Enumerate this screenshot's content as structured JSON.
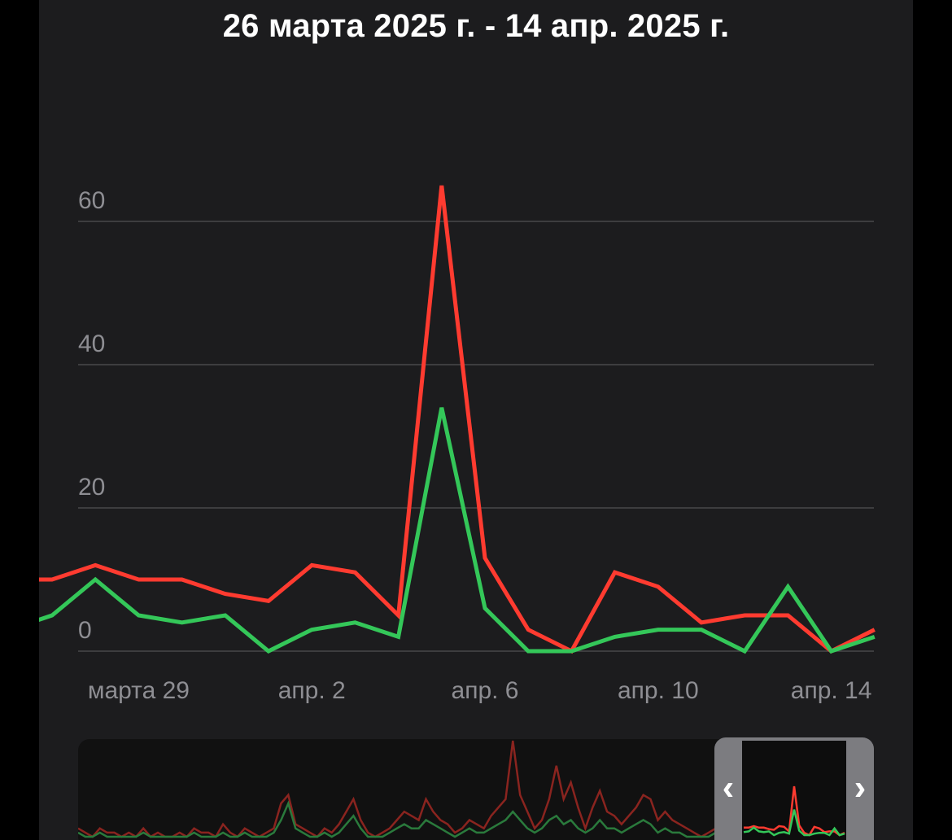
{
  "header": {
    "date_range": "26 марта 2025 г. - 14 апр. 2025 г."
  },
  "colors": {
    "background": "#1c1c1e",
    "grid": "#48484a",
    "tick_text": "#8e8e93",
    "red_series": "#ff3b30",
    "green_series": "#34c759",
    "navigator_bg": "#111111",
    "navigator_handle": "#7c7c80"
  },
  "chart_data": {
    "type": "line",
    "x": [
      "2025-03-26",
      "2025-03-27",
      "2025-03-28",
      "2025-03-29",
      "2025-03-30",
      "2025-03-31",
      "2025-04-01",
      "2025-04-02",
      "2025-04-03",
      "2025-04-04",
      "2025-04-05",
      "2025-04-06",
      "2025-04-07",
      "2025-04-08",
      "2025-04-09",
      "2025-04-10",
      "2025-04-11",
      "2025-04-12",
      "2025-04-13",
      "2025-04-14",
      "2025-04-15"
    ],
    "x_tick_labels": [
      {
        "date": "2025-03-29",
        "label": "марта 29"
      },
      {
        "date": "2025-04-02",
        "label": "апр. 2"
      },
      {
        "date": "2025-04-06",
        "label": "апр. 6"
      },
      {
        "date": "2025-04-10",
        "label": "апр. 10"
      },
      {
        "date": "2025-04-14",
        "label": "апр. 14"
      }
    ],
    "y_ticks": [
      0,
      20,
      40,
      60
    ],
    "ylim": [
      0,
      60
    ],
    "grid": true,
    "series": [
      {
        "color": "#ff3b30",
        "values": [
          10,
          10,
          12,
          10,
          10,
          8,
          7,
          12,
          11,
          5,
          65,
          13,
          3,
          0,
          11,
          9,
          4,
          5,
          5,
          0,
          3
        ]
      },
      {
        "color": "#34c759",
        "values": [
          4,
          5,
          10,
          5,
          4,
          5,
          0,
          3,
          4,
          2,
          34,
          6,
          0,
          0,
          2,
          3,
          3,
          0,
          9,
          0,
          2
        ]
      }
    ],
    "navigator": {
      "red_values": [
        2,
        1,
        0,
        2,
        1,
        1,
        0,
        1,
        0,
        2,
        0,
        1,
        0,
        0,
        1,
        0,
        2,
        1,
        1,
        0,
        3,
        1,
        0,
        2,
        1,
        0,
        1,
        2,
        8,
        10,
        3,
        2,
        1,
        0,
        2,
        1,
        3,
        6,
        9,
        4,
        1,
        0,
        1,
        2,
        4,
        6,
        5,
        4,
        9,
        6,
        4,
        3,
        1,
        2,
        4,
        3,
        2,
        5,
        7,
        9,
        23,
        10,
        6,
        2,
        4,
        9,
        17,
        9,
        13,
        7,
        2,
        7,
        11,
        6,
        5,
        3,
        5,
        7,
        10,
        9,
        4,
        6,
        4,
        3,
        2,
        1,
        0,
        1,
        2,
        3,
        2,
        3,
        1,
        2,
        1,
        2,
        4,
        3,
        3,
        3,
        2,
        2,
        1,
        0,
        0,
        1,
        0
      ],
      "green_values": [
        1,
        0,
        0,
        1,
        0,
        0,
        0,
        0,
        0,
        1,
        0,
        0,
        0,
        0,
        0,
        0,
        1,
        0,
        0,
        0,
        1,
        0,
        0,
        1,
        0,
        0,
        0,
        1,
        4,
        8,
        2,
        1,
        0,
        0,
        1,
        0,
        1,
        3,
        5,
        2,
        0,
        0,
        0,
        1,
        2,
        3,
        2,
        2,
        4,
        3,
        2,
        1,
        0,
        1,
        2,
        1,
        1,
        2,
        3,
        4,
        6,
        4,
        2,
        1,
        2,
        4,
        5,
        3,
        4,
        2,
        1,
        2,
        4,
        2,
        2,
        1,
        2,
        3,
        4,
        3,
        1,
        2,
        1,
        1,
        0,
        0,
        0,
        0,
        1,
        1,
        1,
        1,
        0,
        1,
        0,
        1,
        2,
        1,
        1,
        1,
        1,
        1,
        0,
        0,
        0,
        1,
        0
      ],
      "prev_label": "‹",
      "next_label": "›"
    }
  }
}
